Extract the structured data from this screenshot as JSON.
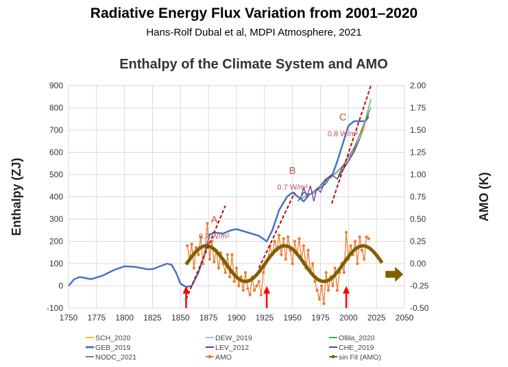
{
  "header": {
    "title": "Radiative Energy Flux Variation from 2001–2020",
    "subtitle": "Hans-Rolf Dubal et al, MDPI Atmosphere, 2021"
  },
  "chart_data": {
    "type": "line",
    "title": "Enthalpy of the Climate System and AMO",
    "xlabel": "",
    "ylabel": "Enthalpy (ZJ)",
    "y2label": "AMO (K)",
    "xlim": [
      1750,
      2050
    ],
    "ylim": [
      -100,
      900
    ],
    "y2lim": [
      -0.5,
      2.0
    ],
    "xticks": [
      "1750",
      "1775",
      "1800",
      "1825",
      "1850",
      "1875",
      "1900",
      "1925",
      "1950",
      "1975",
      "2000",
      "2025",
      "2050"
    ],
    "yticks": [
      "-100",
      "0",
      "100",
      "200",
      "300",
      "400",
      "500",
      "600",
      "700",
      "800",
      "900"
    ],
    "y2ticks": [
      "-0.50",
      "-0.25",
      "0.00",
      "0.25",
      "0.50",
      "0.75",
      "1.00",
      "1.25",
      "1.50",
      "1.75",
      "2.00"
    ],
    "grid": true,
    "series": [
      {
        "name": "GEB_2019",
        "axis": "left",
        "color": "#4472c4",
        "x": [
          1750,
          1755,
          1760,
          1765,
          1770,
          1780,
          1790,
          1800,
          1810,
          1820,
          1825,
          1830,
          1838,
          1842,
          1846,
          1850,
          1855,
          1860,
          1866,
          1872,
          1876,
          1880,
          1888,
          1895,
          1900,
          1910,
          1920,
          1927,
          1932,
          1938,
          1945,
          1950,
          1955,
          1960,
          1965,
          1970,
          1975,
          1980,
          1985,
          1990,
          1995,
          2000,
          2005,
          2010,
          2015,
          2018
        ],
        "y": [
          0,
          30,
          40,
          35,
          30,
          45,
          70,
          88,
          85,
          75,
          75,
          85,
          100,
          95,
          60,
          10,
          -5,
          0,
          60,
          150,
          230,
          240,
          235,
          250,
          255,
          240,
          225,
          200,
          250,
          340,
          400,
          420,
          400,
          380,
          410,
          420,
          450,
          480,
          490,
          560,
          640,
          720,
          740,
          740,
          740,
          760
        ]
      },
      {
        "name": "AMO",
        "axis": "right",
        "color": "#ed7d31",
        "x": [
          1856,
          1858,
          1860,
          1862,
          1864,
          1866,
          1868,
          1870,
          1872,
          1874,
          1876,
          1878,
          1880,
          1882,
          1884,
          1886,
          1888,
          1890,
          1892,
          1894,
          1896,
          1898,
          1900,
          1902,
          1904,
          1906,
          1908,
          1910,
          1912,
          1914,
          1916,
          1918,
          1920,
          1922,
          1924,
          1926,
          1928,
          1930,
          1932,
          1934,
          1936,
          1938,
          1940,
          1942,
          1944,
          1946,
          1948,
          1950,
          1952,
          1954,
          1956,
          1958,
          1960,
          1962,
          1964,
          1966,
          1968,
          1970,
          1972,
          1974,
          1976,
          1978,
          1980,
          1982,
          1984,
          1986,
          1988,
          1990,
          1992,
          1994,
          1996,
          1998,
          2000,
          2002,
          2004,
          2006,
          2008,
          2010,
          2012,
          2014,
          2016,
          2018
        ],
        "y": [
          0.2,
          0.05,
          0.22,
          -0.05,
          0.18,
          0.1,
          0.3,
          0.0,
          0.2,
          0.45,
          0.05,
          0.25,
          0.02,
          0.15,
          -0.05,
          0.12,
          0.0,
          -0.1,
          0.1,
          -0.15,
          0.1,
          -0.2,
          -0.05,
          -0.25,
          -0.15,
          -0.3,
          -0.1,
          -0.28,
          -0.35,
          -0.15,
          -0.3,
          -0.25,
          -0.2,
          -0.35,
          -0.1,
          0.0,
          0.05,
          0.2,
          0.1,
          0.25,
          0.15,
          0.32,
          0.1,
          0.28,
          0.05,
          0.3,
          0.15,
          0.0,
          0.25,
          0.1,
          0.28,
          0.05,
          0.2,
          -0.05,
          0.15,
          -0.1,
          0.0,
          -0.2,
          -0.3,
          -0.4,
          -0.25,
          -0.45,
          -0.1,
          -0.3,
          -0.15,
          -0.25,
          -0.05,
          -0.3,
          -0.1,
          0.0,
          -0.1,
          0.35,
          0.05,
          0.2,
          0.1,
          0.25,
          0.0,
          0.3,
          0.15,
          0.05,
          0.3,
          0.28
        ]
      },
      {
        "name": "sin Fit (AMO)",
        "axis": "right",
        "color": "#7f6000",
        "amplitude": 0.2,
        "period": 70,
        "peak": 1873,
        "xrange": [
          1855,
          2030
        ]
      },
      {
        "name": "SCH_2020",
        "axis": "left",
        "color": "#ffc000",
        "x": [
          1990,
          1995,
          2000,
          2005,
          2010,
          2015
        ],
        "y": [
          500,
          520,
          560,
          600,
          660,
          720
        ]
      },
      {
        "name": "DEW_2019",
        "axis": "left",
        "color": "#9dc3e6",
        "x": [
          1960,
          1970,
          1980,
          1990,
          2000,
          2010,
          2018
        ],
        "y": [
          400,
          420,
          470,
          510,
          570,
          680,
          790
        ]
      },
      {
        "name": "Ollila_2020",
        "axis": "left",
        "color": "#2eb34a",
        "x": [
          1993,
          2000,
          2005,
          2010,
          2015,
          2020
        ],
        "y": [
          520,
          560,
          600,
          660,
          740,
          840
        ]
      },
      {
        "name": "LEV_2012",
        "axis": "left",
        "color": "#7030a0",
        "x": [
          1957,
          1960,
          1963,
          1966,
          1969,
          1972,
          1975,
          1980,
          1985,
          1990,
          2000,
          2010
        ],
        "y": [
          390,
          440,
          400,
          450,
          380,
          440,
          420,
          480,
          500,
          480,
          560,
          660
        ]
      },
      {
        "name": "CHE_2019",
        "axis": "left",
        "color": "#2f5597",
        "x": [
          1955,
          1960,
          1965,
          1970,
          1975,
          1980,
          1985,
          1990,
          1995,
          2000,
          2005,
          2010,
          2015,
          2018
        ],
        "y": [
          380,
          420,
          410,
          430,
          440,
          460,
          500,
          480,
          540,
          580,
          620,
          680,
          740,
          770
        ]
      },
      {
        "name": "NODC_2021",
        "axis": "left",
        "color": "#7f7f7f",
        "x": [
          1957,
          1965,
          1975,
          1985,
          1995,
          2005,
          2015,
          2020
        ],
        "y": [
          390,
          410,
          450,
          490,
          540,
          620,
          740,
          800
        ]
      }
    ],
    "annotations": [
      {
        "label": "A",
        "text": "0.7 W/m²",
        "x": 1880,
        "y": 360,
        "line": [
          [
            1855,
            -60
          ],
          [
            1890,
            360
          ]
        ]
      },
      {
        "label": "B",
        "text": "0.7 W/m²",
        "x": 1950,
        "y": 580,
        "line": [
          [
            1920,
            80
          ],
          [
            1952,
            420
          ]
        ]
      },
      {
        "label": "C",
        "text": "0.8 W/m²",
        "x": 1995,
        "y": 820,
        "line": [
          [
            1985,
            370
          ],
          [
            2020,
            900
          ]
        ]
      }
    ],
    "arrows": [
      1855,
      1927,
      1998
    ],
    "legend": [
      "SCH_2020",
      "DEW_2019",
      "Ollila_2020",
      "GEB_2019",
      "LEV_2012",
      "CHE_2019",
      "NODC_2021",
      "AMO",
      "sin Fit (AMO)"
    ],
    "legend_position": "bottom"
  }
}
